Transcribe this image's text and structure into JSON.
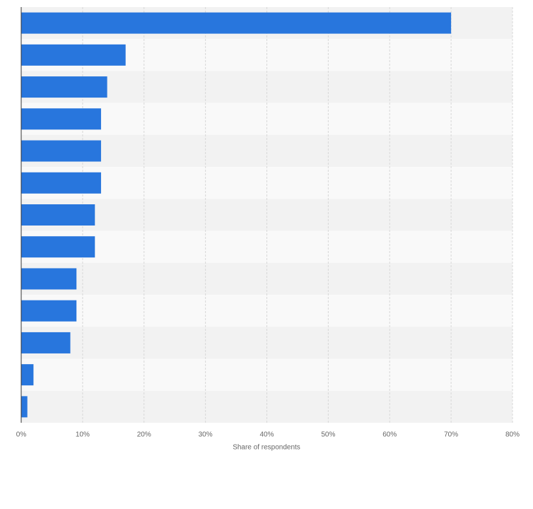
{
  "chart_data": {
    "type": "bar",
    "orientation": "horizontal",
    "categories": [
      null,
      null,
      null,
      null,
      null,
      null,
      null,
      null,
      null,
      null,
      null,
      null,
      null
    ],
    "values": [
      70,
      17,
      14,
      13,
      13,
      13,
      12,
      12,
      9,
      9,
      8,
      2,
      1
    ],
    "color": "#2876dd",
    "xlabel": "Share of respondents",
    "xlim": [
      0,
      80
    ],
    "xticks": [
      {
        "value": 0,
        "label": "0%"
      },
      {
        "value": 10,
        "label": "10%"
      },
      {
        "value": 20,
        "label": "20%"
      },
      {
        "value": 30,
        "label": "30%"
      },
      {
        "value": 40,
        "label": "40%"
      },
      {
        "value": 50,
        "label": "50%"
      },
      {
        "value": 60,
        "label": "60%"
      },
      {
        "value": 70,
        "label": "70%"
      },
      {
        "value": 80,
        "label": "80%"
      }
    ],
    "grid": true
  }
}
